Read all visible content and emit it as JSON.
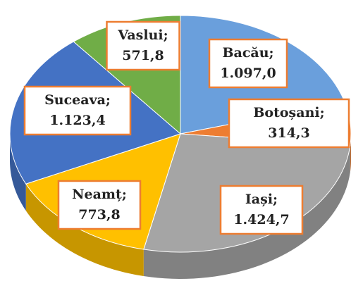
{
  "chart_data": {
    "type": "pie",
    "label_separator": ";",
    "categories": [
      "Bacău",
      "Botoșani",
      "Iași",
      "Neamț",
      "Suceava",
      "Vaslui"
    ],
    "values": [
      1097.0,
      314.3,
      1424.7,
      773.8,
      1123.4,
      571.8
    ],
    "value_labels": [
      "1.097,0",
      "314,3",
      "1.424,7",
      "773,8",
      "1.123,4",
      "571,8"
    ],
    "colors": [
      "#6a9fdc",
      "#ed7d31",
      "#a5a5a5",
      "#ffc000",
      "#4472c4",
      "#70ad47"
    ],
    "label_border_color": "#ed7d31"
  }
}
